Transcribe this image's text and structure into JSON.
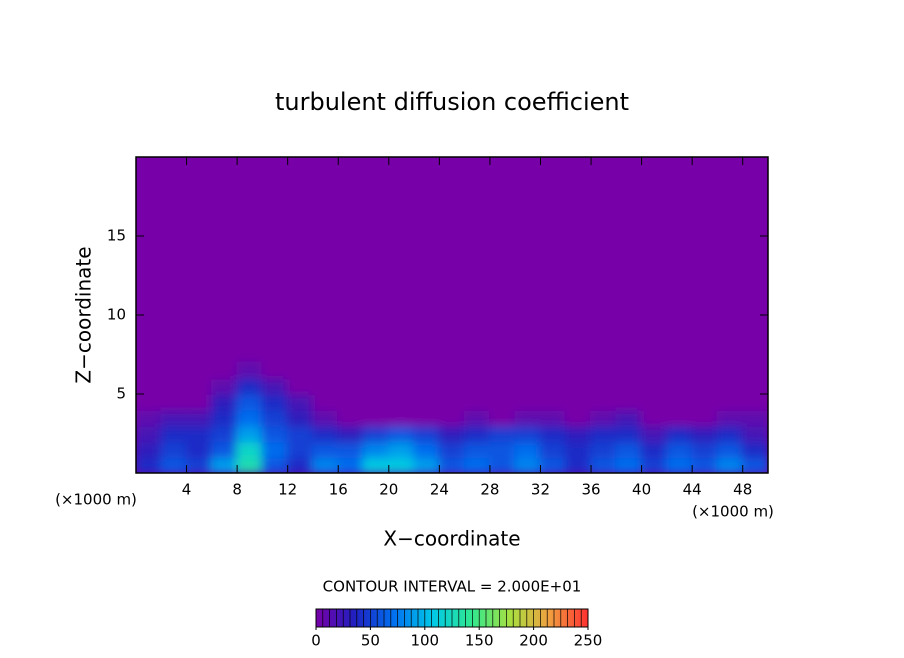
{
  "chart_data": {
    "type": "contour",
    "title": "turbulent diffusion coefficient",
    "xlabel": "X−coordinate",
    "ylabel": "Z−coordinate",
    "x_unit_label": "(×1000 m)",
    "y_unit_label": "(×1000 m)",
    "xlim": [
      0,
      50
    ],
    "ylim": [
      0,
      20
    ],
    "xticks": [
      4,
      8,
      12,
      16,
      20,
      24,
      28,
      32,
      36,
      40,
      44,
      48
    ],
    "yticks": [
      5,
      10,
      15
    ],
    "contour_interval_label": "CONTOUR INTERVAL = 2.000E+01",
    "colormap": [
      "#7800a8",
      "#2020c0",
      "#0070f0",
      "#00c8e8",
      "#30e890",
      "#a8e040",
      "#f0a040",
      "#ff3030"
    ],
    "colorbar": {
      "lim": [
        0,
        250
      ],
      "ticks": [
        0,
        50,
        100,
        150,
        200,
        250
      ]
    },
    "field": {
      "x": [
        1,
        3,
        5,
        7,
        9,
        11,
        13,
        15,
        17,
        19,
        21,
        23,
        25,
        27,
        29,
        31,
        33,
        35,
        37,
        39,
        41,
        43,
        45,
        47,
        49
      ],
      "z": [
        0.5,
        1.5,
        2.5,
        3.5,
        4.5,
        5.5,
        6.5
      ],
      "values": [
        [
          40,
          60,
          50,
          90,
          130,
          60,
          40,
          80,
          70,
          110,
          110,
          90,
          60,
          70,
          60,
          80,
          60,
          40,
          60,
          70,
          50,
          70,
          60,
          80,
          60
        ],
        [
          30,
          50,
          40,
          60,
          120,
          70,
          50,
          60,
          60,
          80,
          90,
          70,
          50,
          60,
          60,
          70,
          50,
          40,
          50,
          60,
          40,
          60,
          50,
          60,
          40
        ],
        [
          20,
          40,
          40,
          50,
          90,
          60,
          50,
          40,
          30,
          50,
          60,
          50,
          30,
          40,
          50,
          50,
          40,
          30,
          40,
          40,
          20,
          40,
          30,
          40,
          20
        ],
        [
          10,
          20,
          20,
          40,
          70,
          50,
          30,
          10,
          0,
          0,
          0,
          0,
          0,
          10,
          0,
          10,
          10,
          0,
          10,
          20,
          0,
          0,
          0,
          10,
          10
        ],
        [
          0,
          0,
          0,
          30,
          60,
          40,
          20,
          0,
          0,
          0,
          0,
          0,
          0,
          0,
          0,
          0,
          0,
          0,
          0,
          0,
          0,
          0,
          0,
          0,
          0
        ],
        [
          0,
          0,
          0,
          10,
          40,
          20,
          0,
          0,
          0,
          0,
          0,
          0,
          0,
          0,
          0,
          0,
          0,
          0,
          0,
          0,
          0,
          0,
          0,
          0,
          0
        ],
        [
          0,
          0,
          0,
          0,
          10,
          0,
          0,
          0,
          0,
          0,
          0,
          0,
          0,
          0,
          0,
          0,
          0,
          0,
          0,
          0,
          0,
          0,
          0,
          0,
          0
        ]
      ]
    }
  }
}
